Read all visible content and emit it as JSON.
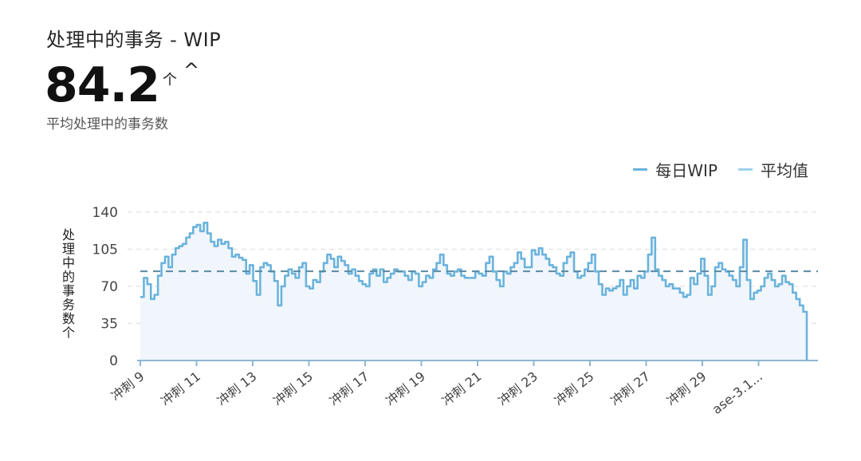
{
  "header": {
    "title": "处理中的事务 - WIP",
    "kpi_value": "84.2",
    "kpi_unit": "个",
    "kpi_extra": "^",
    "subtitle": "平均处理中的事务数"
  },
  "legend": {
    "daily": "每日WIP",
    "average": "平均值"
  },
  "colors": {
    "line": "#6bb3dc",
    "fill": "#f0f6fc",
    "average_line": "#5a8aa3",
    "legend_daily": "#6bb3dc",
    "legend_average": "#9fd2ee",
    "axis": "#8fb7d1",
    "grid": "#e6e6e6"
  },
  "chart_data": {
    "type": "area",
    "ylabel": "处理中的事务数个",
    "ylim": [
      0,
      140
    ],
    "yticks": [
      "0",
      "35",
      "70",
      "105",
      "140"
    ],
    "xticks": [
      "冲刺 9",
      "冲刺 11",
      "冲刺 13",
      "冲刺 15",
      "冲刺 17",
      "冲刺 19",
      "冲刺 21",
      "冲刺 23",
      "冲刺 25",
      "冲刺 27",
      "冲刺 29",
      "ase-3.1..."
    ],
    "average": 84.2,
    "grid": true,
    "legend_position": "top-right",
    "series": [
      {
        "name": "每日WIP",
        "values": [
          60,
          78,
          72,
          58,
          62,
          80,
          92,
          98,
          88,
          100,
          106,
          108,
          110,
          116,
          120,
          126,
          128,
          122,
          130,
          120,
          112,
          108,
          114,
          110,
          112,
          106,
          98,
          100,
          97,
          95,
          82,
          90,
          75,
          62,
          88,
          92,
          90,
          84,
          75,
          52,
          70,
          80,
          86,
          82,
          78,
          88,
          92,
          70,
          68,
          76,
          74,
          84,
          92,
          100,
          96,
          88,
          98,
          94,
          90,
          82,
          86,
          80,
          75,
          72,
          70,
          82,
          86,
          80,
          86,
          74,
          78,
          82,
          86,
          84,
          84,
          80,
          76,
          84,
          82,
          70,
          74,
          80,
          78,
          86,
          92,
          100,
          90,
          82,
          80,
          84,
          86,
          80,
          78,
          78,
          78,
          84,
          82,
          80,
          92,
          98,
          84,
          76,
          70,
          84,
          82,
          88,
          92,
          102,
          96,
          88,
          88,
          104,
          100,
          106,
          100,
          96,
          90,
          88,
          82,
          80,
          92,
          98,
          102,
          84,
          78,
          80,
          86,
          92,
          100,
          84,
          72,
          62,
          68,
          66,
          68,
          70,
          76,
          62,
          70,
          76,
          68,
          80,
          78,
          84,
          100,
          116,
          86,
          80,
          76,
          70,
          72,
          68,
          68,
          64,
          60,
          62,
          78,
          72,
          82,
          96,
          80,
          62,
          70,
          88,
          92,
          86,
          84,
          80,
          76,
          70,
          88,
          114,
          76,
          58,
          64,
          66,
          70,
          78,
          82,
          76,
          70,
          72,
          80,
          74,
          72,
          64,
          58,
          52,
          46,
          0
        ]
      }
    ]
  }
}
